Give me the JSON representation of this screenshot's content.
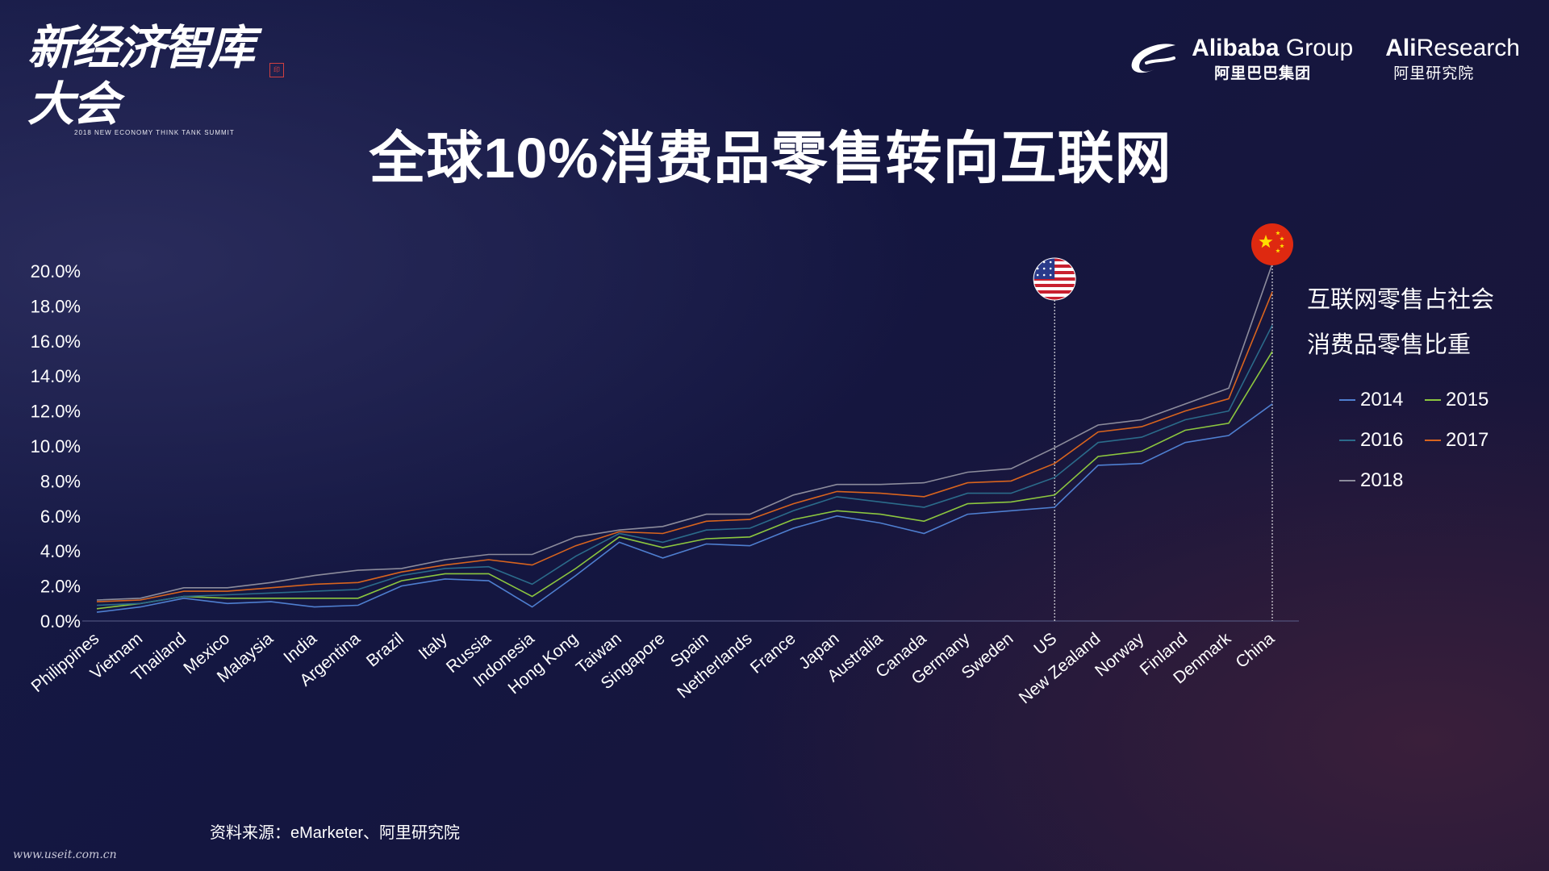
{
  "header": {
    "brand_left_title": "新经济智库大会",
    "brand_left_sub": "2018 NEW ECONOMY THINK TANK SUMMIT",
    "alibaba_bold": "Alibaba",
    "alibaba_light": " Group",
    "alibaba_cn": "阿里巴巴集团",
    "aliresearch_bold": "Ali",
    "aliresearch_light": "Research",
    "aliresearch_cn": "阿里研究院"
  },
  "title": "全球10%消费品零售转向互联网",
  "legend_title_line1": "互联网零售占社会",
  "legend_title_line2": "消费品零售比重",
  "source": "资料来源：eMarketer、阿里研究院",
  "watermark": "www.useit.com.cn",
  "chart_data": {
    "type": "line",
    "title": "全球10%消费品零售转向互联网",
    "categories": [
      "Philippines",
      "Vietnam",
      "Thailand",
      "Mexico",
      "Malaysia",
      "India",
      "Argentina",
      "Brazil",
      "Italy",
      "Russia",
      "Indonesia",
      "Hong Kong",
      "Taiwan",
      "Singapore",
      "Spain",
      "Netherlands",
      "France",
      "Japan",
      "Australia",
      "Canada",
      "Germany",
      "Sweden",
      "US",
      "New Zealand",
      "Norway",
      "Finland",
      "Denmark",
      "China"
    ],
    "yticks": [
      "0.0%",
      "2.0%",
      "4.0%",
      "6.0%",
      "8.0%",
      "10.0%",
      "12.0%",
      "14.0%",
      "16.0%",
      "18.0%",
      "20.0%"
    ],
    "ylim": [
      0,
      20
    ],
    "legend_position": "right",
    "grid": false,
    "series": [
      {
        "name": "2014",
        "color": "#4f7fd0",
        "values": [
          0.5,
          0.8,
          1.3,
          1.0,
          1.1,
          0.8,
          0.9,
          2.0,
          2.4,
          2.3,
          0.8,
          2.6,
          4.5,
          3.6,
          4.4,
          4.3,
          5.3,
          6.0,
          5.6,
          5.0,
          6.1,
          6.3,
          6.5,
          8.9,
          9.0,
          10.2,
          10.6,
          12.4
        ]
      },
      {
        "name": "2015",
        "color": "#8cc63f",
        "values": [
          0.7,
          1.0,
          1.4,
          1.3,
          1.3,
          1.3,
          1.3,
          2.3,
          2.7,
          2.7,
          1.4,
          3.0,
          4.8,
          4.2,
          4.7,
          4.8,
          5.8,
          6.3,
          6.1,
          5.7,
          6.7,
          6.8,
          7.2,
          9.4,
          9.7,
          10.9,
          11.3,
          15.4
        ]
      },
      {
        "name": "2016",
        "color": "#2b6b8a",
        "values": [
          0.9,
          1.0,
          1.4,
          1.5,
          1.6,
          1.7,
          1.8,
          2.6,
          3.0,
          3.1,
          2.1,
          3.7,
          5.0,
          4.5,
          5.2,
          5.3,
          6.3,
          7.1,
          6.8,
          6.5,
          7.3,
          7.3,
          8.2,
          10.2,
          10.5,
          11.5,
          12.0,
          16.9
        ]
      },
      {
        "name": "2017",
        "color": "#d8641e",
        "values": [
          1.1,
          1.2,
          1.7,
          1.7,
          1.9,
          2.1,
          2.2,
          2.8,
          3.2,
          3.5,
          3.2,
          4.3,
          5.1,
          5.0,
          5.7,
          5.8,
          6.7,
          7.4,
          7.3,
          7.1,
          7.9,
          8.0,
          9.0,
          10.8,
          11.1,
          12.0,
          12.7,
          18.8
        ]
      },
      {
        "name": "2018",
        "color": "#8c8c9c",
        "values": [
          1.2,
          1.3,
          1.9,
          1.9,
          2.2,
          2.6,
          2.9,
          3.0,
          3.5,
          3.8,
          3.8,
          4.8,
          5.2,
          5.4,
          6.1,
          6.1,
          7.2,
          7.8,
          7.8,
          7.9,
          8.5,
          8.7,
          9.9,
          11.2,
          11.5,
          12.4,
          13.3,
          20.4
        ]
      }
    ],
    "annotations": [
      {
        "category": "US",
        "marker": "us-flag"
      },
      {
        "category": "China",
        "marker": "china-flag"
      }
    ]
  }
}
